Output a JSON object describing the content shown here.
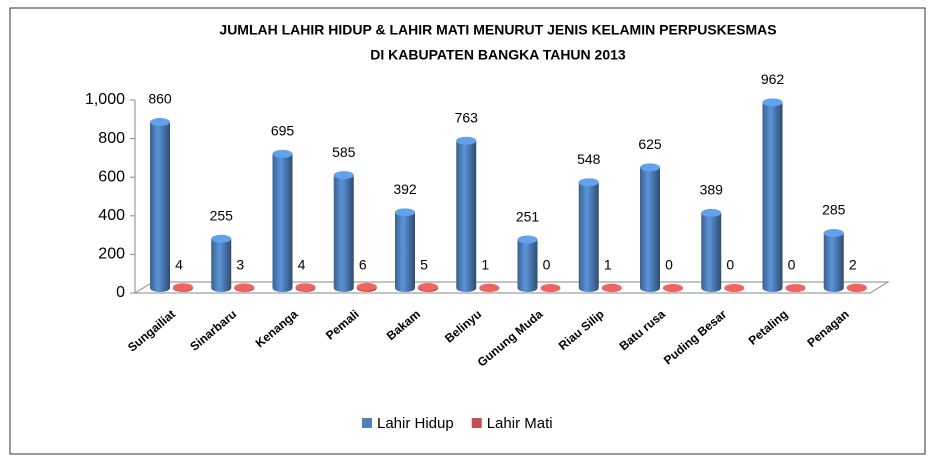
{
  "chart_data": {
    "type": "bar3d",
    "title": [
      "JUMLAH  LAHIR HIDUP & LAHIR MATI MENURUT JENIS KELAMIN  PERPUSKESMAS",
      "DI KABUPATEN BANGKA TAHUN 2013"
    ],
    "categories": [
      "Sungailiat",
      "Sinarbaru",
      "Kenanga",
      "Pemali",
      "Bakam",
      "Belinyu",
      "Gunung Muda",
      "Riau Silip",
      "Batu rusa",
      "Puding Besar",
      "Petaling",
      "Penagan"
    ],
    "series": [
      {
        "name": "Lahir Hidup",
        "color": "#4f81bd",
        "values": [
          860,
          255,
          695,
          585,
          392,
          763,
          251,
          548,
          625,
          389,
          962,
          285
        ]
      },
      {
        "name": "Lahir Mati",
        "color": "#c0504d",
        "values": [
          4,
          3,
          4,
          6,
          5,
          1,
          0,
          1,
          0,
          0,
          0,
          2
        ]
      }
    ],
    "ylim": [
      0,
      1000
    ],
    "yticks": [
      0,
      200,
      400,
      600,
      800,
      {
        "value": 1000,
        "label": "1,000"
      }
    ],
    "legend": "bottom"
  }
}
